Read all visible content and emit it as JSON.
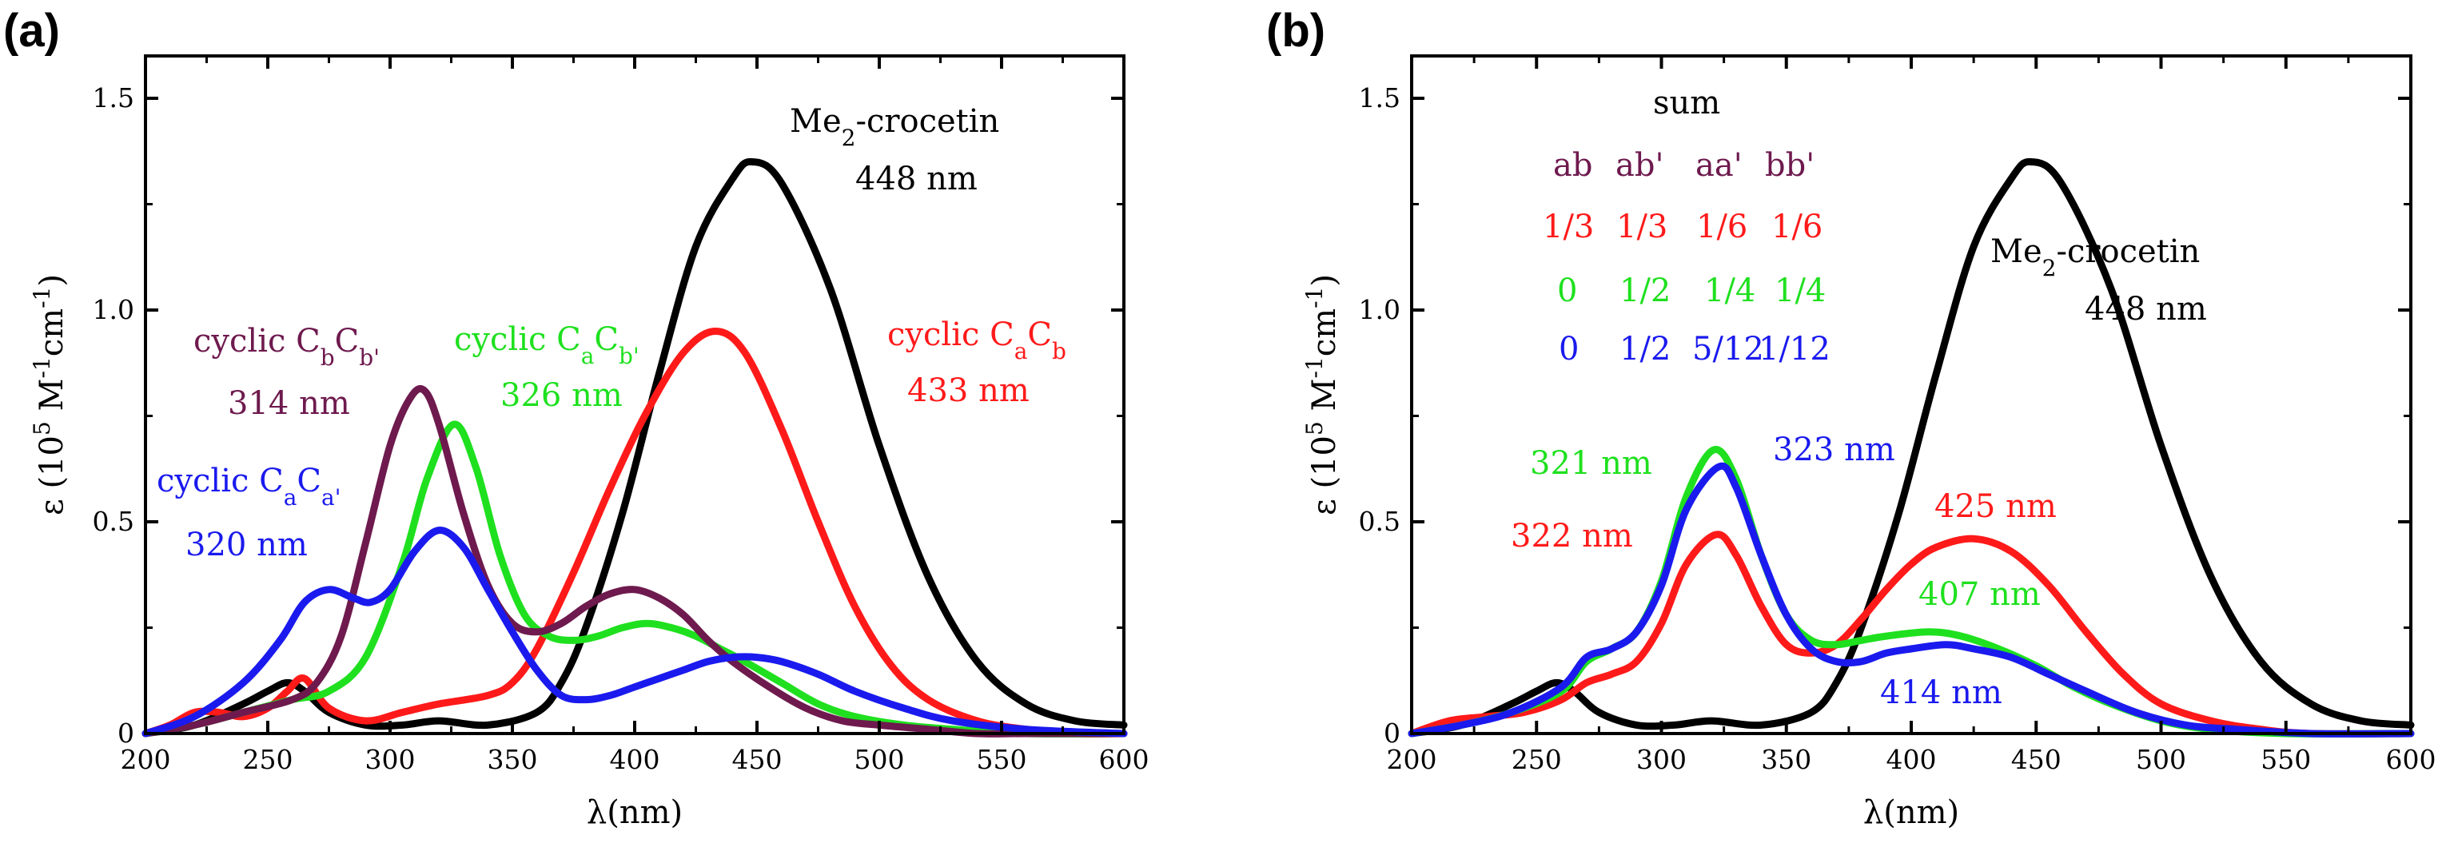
{
  "colors": {
    "black": "#000000",
    "red": "#ff1a1a",
    "green": "#1fe01f",
    "blue": "#1a1aee",
    "maroon": "#6e1a4e"
  },
  "chart_data": [
    {
      "type": "line",
      "panel_label": "(a)",
      "title": "",
      "xlabel": "λ(nm)",
      "ylabel_parts": {
        "base": "ε (10",
        "exp1": "5",
        "mid1": " M",
        "exp2": "-1",
        "mid2": "cm",
        "exp3": "-1",
        "end": ")"
      },
      "xlim": [
        200,
        600
      ],
      "ylim": [
        0,
        1.6
      ],
      "x_ticks": [
        200,
        250,
        300,
        350,
        400,
        450,
        500,
        550,
        600
      ],
      "y_ticks": [
        0,
        0.5,
        1.0,
        1.5
      ],
      "y_tick_labels": [
        "0",
        "0.5",
        "1.0",
        "1.5"
      ],
      "grid": false,
      "series": [
        {
          "name": "Me2-crocetin",
          "color_key": "black",
          "x": [
            200,
            220,
            240,
            250,
            258,
            265,
            275,
            290,
            305,
            320,
            340,
            360,
            370,
            380,
            395,
            410,
            425,
            440,
            448,
            460,
            480,
            500,
            520,
            540,
            560,
            580,
            600
          ],
          "y": [
            0.0,
            0.02,
            0.07,
            0.1,
            0.12,
            0.1,
            0.05,
            0.02,
            0.02,
            0.03,
            0.02,
            0.05,
            0.12,
            0.25,
            0.52,
            0.85,
            1.15,
            1.31,
            1.35,
            1.3,
            1.05,
            0.68,
            0.37,
            0.17,
            0.07,
            0.03,
            0.02
          ]
        },
        {
          "name": "cyclic CaCb",
          "color_key": "red",
          "x": [
            200,
            210,
            220,
            230,
            240,
            250,
            258,
            265,
            275,
            290,
            305,
            320,
            340,
            350,
            360,
            375,
            390,
            405,
            420,
            433,
            445,
            460,
            475,
            490,
            505,
            520,
            540,
            560,
            580,
            600
          ],
          "y": [
            0.0,
            0.02,
            0.05,
            0.05,
            0.04,
            0.06,
            0.1,
            0.13,
            0.06,
            0.03,
            0.05,
            0.07,
            0.09,
            0.12,
            0.2,
            0.38,
            0.58,
            0.76,
            0.9,
            0.95,
            0.9,
            0.72,
            0.5,
            0.3,
            0.16,
            0.08,
            0.03,
            0.01,
            0.0,
            0.0
          ]
        },
        {
          "name": "cyclic CaCb'",
          "color_key": "green",
          "x": [
            200,
            220,
            240,
            260,
            275,
            290,
            305,
            315,
            326,
            335,
            345,
            355,
            365,
            375,
            385,
            395,
            405,
            415,
            425,
            435,
            445,
            460,
            475,
            490,
            510,
            530,
            560,
            600
          ],
          "y": [
            0.0,
            0.02,
            0.05,
            0.08,
            0.1,
            0.18,
            0.4,
            0.6,
            0.73,
            0.63,
            0.42,
            0.28,
            0.23,
            0.22,
            0.23,
            0.25,
            0.26,
            0.25,
            0.23,
            0.2,
            0.17,
            0.12,
            0.07,
            0.04,
            0.02,
            0.01,
            0.0,
            0.0
          ]
        },
        {
          "name": "cyclic CbCb'",
          "color_key": "maroon",
          "x": [
            200,
            220,
            240,
            260,
            270,
            280,
            290,
            300,
            308,
            314,
            320,
            330,
            340,
            350,
            360,
            370,
            380,
            390,
            400,
            410,
            420,
            430,
            440,
            455,
            470,
            485,
            500,
            520,
            540,
            560,
            600
          ],
          "y": [
            0.0,
            0.02,
            0.05,
            0.08,
            0.12,
            0.23,
            0.45,
            0.68,
            0.79,
            0.81,
            0.73,
            0.52,
            0.35,
            0.26,
            0.24,
            0.26,
            0.3,
            0.33,
            0.34,
            0.32,
            0.28,
            0.22,
            0.17,
            0.11,
            0.06,
            0.03,
            0.02,
            0.01,
            0.0,
            0.0,
            0.0
          ]
        },
        {
          "name": "cyclic CaCa'",
          "color_key": "blue",
          "x": [
            200,
            220,
            240,
            255,
            265,
            275,
            285,
            292,
            300,
            310,
            320,
            330,
            340,
            350,
            360,
            370,
            380,
            390,
            400,
            410,
            420,
            430,
            440,
            450,
            460,
            475,
            490,
            510,
            530,
            560,
            600
          ],
          "y": [
            0.0,
            0.04,
            0.12,
            0.22,
            0.31,
            0.34,
            0.32,
            0.31,
            0.34,
            0.43,
            0.48,
            0.44,
            0.34,
            0.24,
            0.15,
            0.09,
            0.08,
            0.09,
            0.11,
            0.13,
            0.15,
            0.17,
            0.18,
            0.18,
            0.17,
            0.14,
            0.1,
            0.06,
            0.03,
            0.01,
            0.0
          ]
        }
      ],
      "annotations": [
        {
          "color_key": "black",
          "parts": [
            {
              "t": "Me"
            },
            {
              "t": "2",
              "sub": true
            },
            {
              "t": "-crocetin"
            }
          ]
        },
        {
          "color_key": "black",
          "parts": [
            {
              "t": "448 nm"
            }
          ]
        },
        {
          "color_key": "red",
          "parts": [
            {
              "t": "cyclic C"
            },
            {
              "t": "a",
              "sub": true
            },
            {
              "t": "C"
            },
            {
              "t": "b",
              "sub": true
            }
          ]
        },
        {
          "color_key": "red",
          "parts": [
            {
              "t": "433 nm"
            }
          ]
        },
        {
          "color_key": "green",
          "parts": [
            {
              "t": "cyclic C"
            },
            {
              "t": "a",
              "sub": true
            },
            {
              "t": "C"
            },
            {
              "t": "b'",
              "sub": true
            }
          ]
        },
        {
          "color_key": "green",
          "parts": [
            {
              "t": "326 nm"
            }
          ]
        },
        {
          "color_key": "maroon",
          "parts": [
            {
              "t": "cyclic C"
            },
            {
              "t": "b",
              "sub": true
            },
            {
              "t": "C"
            },
            {
              "t": "b'",
              "sub": true
            }
          ]
        },
        {
          "color_key": "maroon",
          "parts": [
            {
              "t": "314 nm"
            }
          ]
        },
        {
          "color_key": "blue",
          "parts": [
            {
              "t": "cyclic C"
            },
            {
              "t": "a",
              "sub": true
            },
            {
              "t": "C"
            },
            {
              "t": "a'",
              "sub": true
            }
          ]
        },
        {
          "color_key": "blue",
          "parts": [
            {
              "t": "320 nm"
            }
          ]
        }
      ]
    },
    {
      "type": "line",
      "panel_label": "(b)",
      "title": "",
      "xlabel": "λ(nm)",
      "ylabel_parts": {
        "base": "ε (10",
        "exp1": "5",
        "mid1": " M",
        "exp2": "-1",
        "mid2": "cm",
        "exp3": "-1",
        "end": ")"
      },
      "xlim": [
        200,
        600
      ],
      "ylim": [
        0,
        1.6
      ],
      "x_ticks": [
        200,
        250,
        300,
        350,
        400,
        450,
        500,
        550,
        600
      ],
      "y_ticks": [
        0,
        0.5,
        1.0,
        1.5
      ],
      "y_tick_labels": [
        "0",
        "0.5",
        "1.0",
        "1.5"
      ],
      "grid": false,
      "series": [
        {
          "name": "Me2-crocetin",
          "color_key": "black",
          "x": [
            200,
            220,
            240,
            250,
            258,
            265,
            275,
            290,
            305,
            320,
            340,
            360,
            370,
            380,
            395,
            410,
            425,
            440,
            448,
            460,
            480,
            500,
            520,
            540,
            560,
            580,
            600
          ],
          "y": [
            0.0,
            0.02,
            0.07,
            0.1,
            0.12,
            0.1,
            0.05,
            0.02,
            0.02,
            0.03,
            0.02,
            0.05,
            0.12,
            0.25,
            0.52,
            0.85,
            1.15,
            1.31,
            1.35,
            1.3,
            1.05,
            0.68,
            0.37,
            0.17,
            0.07,
            0.03,
            0.02
          ]
        },
        {
          "name": "sum 1/3 1/3 1/6 1/6",
          "color_key": "red",
          "x": [
            200,
            215,
            230,
            245,
            260,
            270,
            280,
            290,
            300,
            310,
            322,
            330,
            340,
            350,
            360,
            370,
            380,
            390,
            400,
            410,
            425,
            440,
            455,
            470,
            485,
            500,
            520,
            540,
            560,
            600
          ],
          "y": [
            0.0,
            0.03,
            0.04,
            0.05,
            0.08,
            0.12,
            0.14,
            0.17,
            0.26,
            0.4,
            0.47,
            0.42,
            0.3,
            0.21,
            0.19,
            0.21,
            0.27,
            0.34,
            0.4,
            0.44,
            0.46,
            0.43,
            0.35,
            0.24,
            0.14,
            0.07,
            0.03,
            0.01,
            0.0,
            0.0
          ]
        },
        {
          "name": "sum 0 1/2 1/4 1/4",
          "color_key": "green",
          "x": [
            200,
            220,
            240,
            260,
            270,
            280,
            290,
            300,
            310,
            321,
            330,
            340,
            350,
            360,
            370,
            380,
            390,
            407,
            420,
            435,
            450,
            465,
            480,
            500,
            520,
            550,
            600
          ],
          "y": [
            0.0,
            0.02,
            0.05,
            0.1,
            0.17,
            0.2,
            0.24,
            0.36,
            0.56,
            0.67,
            0.6,
            0.42,
            0.28,
            0.22,
            0.21,
            0.22,
            0.23,
            0.24,
            0.23,
            0.2,
            0.16,
            0.11,
            0.07,
            0.03,
            0.01,
            0.0,
            0.0
          ]
        },
        {
          "name": "sum 0 1/2 5/12 1/12",
          "color_key": "blue",
          "x": [
            200,
            220,
            240,
            260,
            270,
            280,
            290,
            300,
            310,
            323,
            330,
            340,
            350,
            360,
            370,
            380,
            390,
            400,
            414,
            425,
            440,
            455,
            470,
            490,
            510,
            530,
            560,
            600
          ],
          "y": [
            0.0,
            0.02,
            0.05,
            0.11,
            0.18,
            0.2,
            0.24,
            0.35,
            0.53,
            0.63,
            0.58,
            0.42,
            0.28,
            0.2,
            0.17,
            0.17,
            0.19,
            0.2,
            0.21,
            0.2,
            0.18,
            0.14,
            0.1,
            0.05,
            0.02,
            0.01,
            0.0,
            0.0
          ]
        }
      ],
      "annotations": [
        {
          "color_key": "black",
          "parts": [
            {
              "t": "Me"
            },
            {
              "t": "2",
              "sub": true
            },
            {
              "t": "-crocetin"
            }
          ]
        },
        {
          "color_key": "black",
          "parts": [
            {
              "t": "448 nm"
            }
          ]
        },
        {
          "color_key": "black",
          "parts": [
            {
              "t": "sum"
            }
          ]
        },
        {
          "color_key": "maroon",
          "parts": [
            {
              "t": "ab"
            }
          ]
        },
        {
          "color_key": "maroon",
          "parts": [
            {
              "t": "ab'"
            }
          ]
        },
        {
          "color_key": "maroon",
          "parts": [
            {
              "t": "aa'"
            }
          ]
        },
        {
          "color_key": "maroon",
          "parts": [
            {
              "t": "bb'"
            }
          ]
        },
        {
          "color_key": "red",
          "parts": [
            {
              "t": "1/3"
            }
          ]
        },
        {
          "color_key": "red",
          "parts": [
            {
              "t": "1/3"
            }
          ]
        },
        {
          "color_key": "red",
          "parts": [
            {
              "t": "1/6"
            }
          ]
        },
        {
          "color_key": "red",
          "parts": [
            {
              "t": "1/6"
            }
          ]
        },
        {
          "color_key": "green",
          "parts": [
            {
              "t": "0"
            }
          ]
        },
        {
          "color_key": "green",
          "parts": [
            {
              "t": "1/2"
            }
          ]
        },
        {
          "color_key": "green",
          "parts": [
            {
              "t": "1/4"
            }
          ]
        },
        {
          "color_key": "green",
          "parts": [
            {
              "t": "1/4"
            }
          ]
        },
        {
          "color_key": "blue",
          "parts": [
            {
              "t": "0"
            }
          ]
        },
        {
          "color_key": "blue",
          "parts": [
            {
              "t": "1/2"
            }
          ]
        },
        {
          "color_key": "blue",
          "parts": [
            {
              "t": "5/12"
            }
          ]
        },
        {
          "color_key": "blue",
          "parts": [
            {
              "t": "1/12"
            }
          ]
        },
        {
          "color_key": "green",
          "parts": [
            {
              "t": "321 nm"
            }
          ]
        },
        {
          "color_key": "blue",
          "parts": [
            {
              "t": "323 nm"
            }
          ]
        },
        {
          "color_key": "red",
          "parts": [
            {
              "t": "322 nm"
            }
          ]
        },
        {
          "color_key": "red",
          "parts": [
            {
              "t": "425 nm"
            }
          ]
        },
        {
          "color_key": "green",
          "parts": [
            {
              "t": "407 nm"
            }
          ]
        },
        {
          "color_key": "blue",
          "parts": [
            {
              "t": "414 nm"
            }
          ]
        }
      ]
    }
  ]
}
